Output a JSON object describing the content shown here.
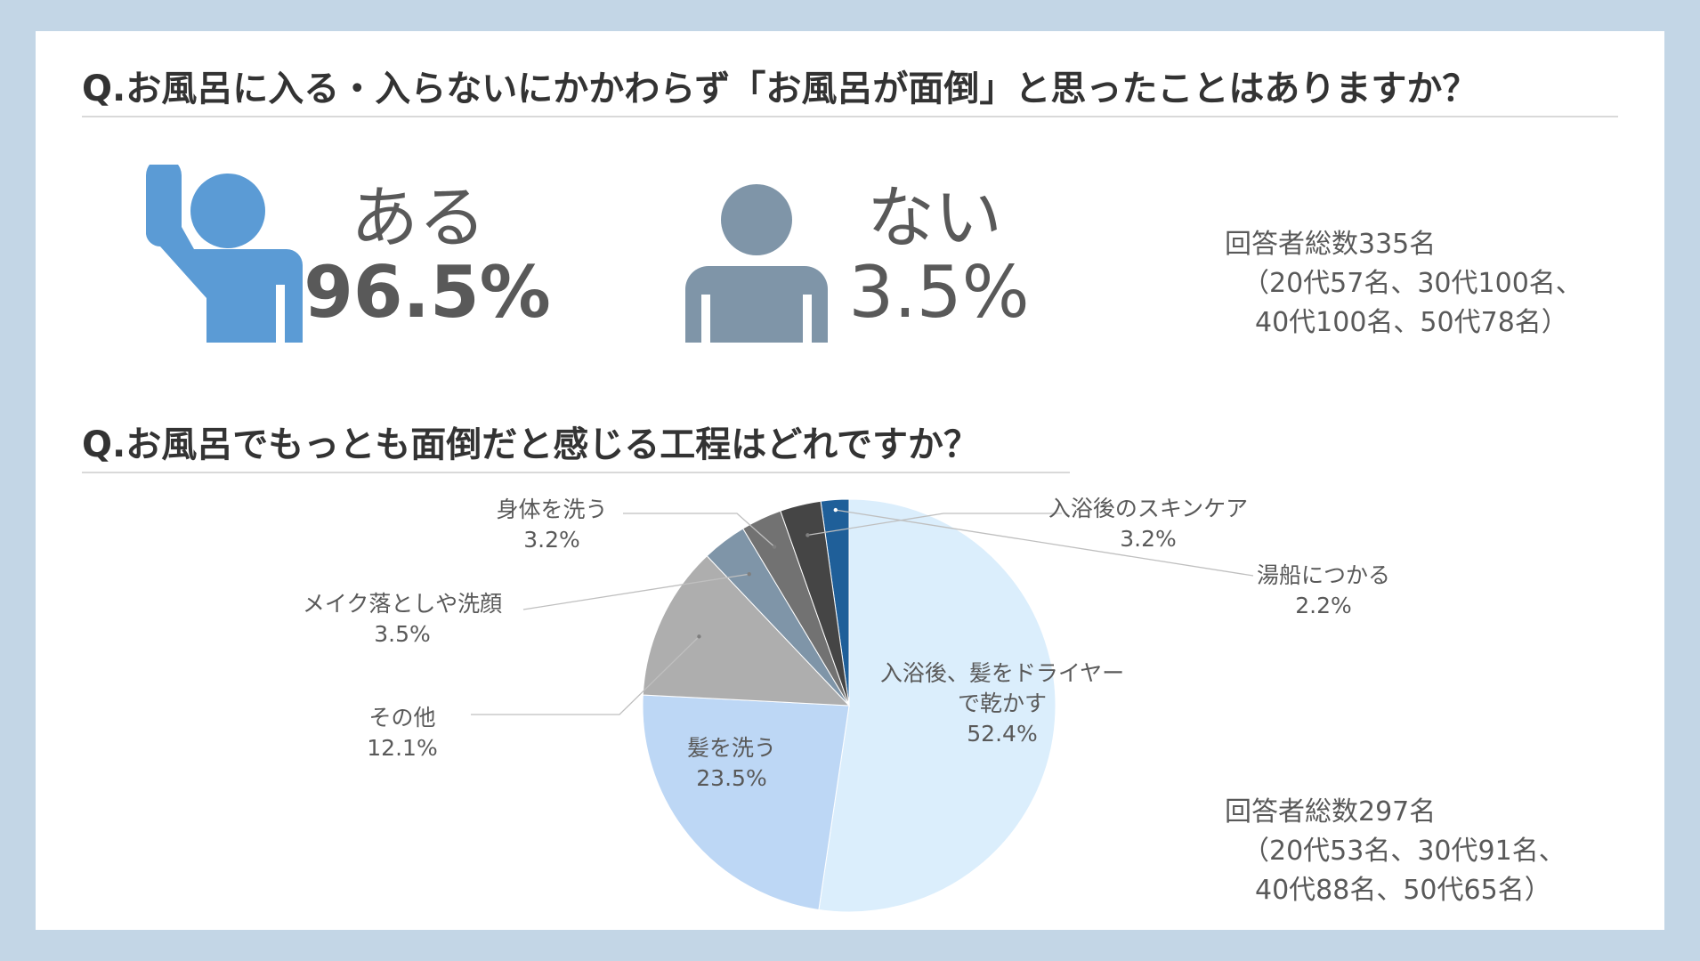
{
  "q1": {
    "title": "Q.お風呂に入る・入らないにかかわらず「お風呂が面倒」と思ったことはありますか？",
    "yes_label": "ある",
    "yes_value": "96.5%",
    "no_label": "ない",
    "no_value": "3.5%",
    "yes_icon": "person-raising-hand-icon",
    "no_icon": "person-icon",
    "yes_color": "#5b9bd5",
    "no_color": "#7f95a8",
    "respondents": [
      "回答者総数335名",
      "（20代57名、30代100名、",
      "40代100名、50代78名）"
    ]
  },
  "q2": {
    "title": "Q.お風呂でもっとも面倒だと感じる工程はどれですか？",
    "respondents": [
      "回答者総数297名",
      "（20代53名、30代91名、",
      "40代88名、50代65名）"
    ]
  },
  "chart_data": {
    "type": "pie",
    "title": "Q.お風呂でもっとも面倒だと感じる工程はどれですか？",
    "slices": [
      {
        "label": "湯船につかる",
        "value": 2.2,
        "display": "2.2%",
        "color": "#1f5f99"
      },
      {
        "label": "入浴後、髪をドライヤーで乾かす",
        "label_lines": [
          "入浴後、髪をドライヤー",
          "で乾かす"
        ],
        "value": 52.4,
        "display": "52.4%",
        "color": "#dbeefc"
      },
      {
        "label": "髪を洗う",
        "value": 23.5,
        "display": "23.5%",
        "color": "#bdd7f5"
      },
      {
        "label": "その他",
        "value": 12.1,
        "display": "12.1%",
        "color": "#aeaeae"
      },
      {
        "label": "メイク落としや洗顔",
        "value": 3.5,
        "display": "3.5%",
        "color": "#7f95a8"
      },
      {
        "label": "身体を洗う",
        "value": 3.2,
        "display": "3.2%",
        "color": "#727272"
      },
      {
        "label": "入浴後のスキンケア",
        "value": 3.2,
        "display": "3.2%",
        "color": "#454545"
      }
    ]
  }
}
